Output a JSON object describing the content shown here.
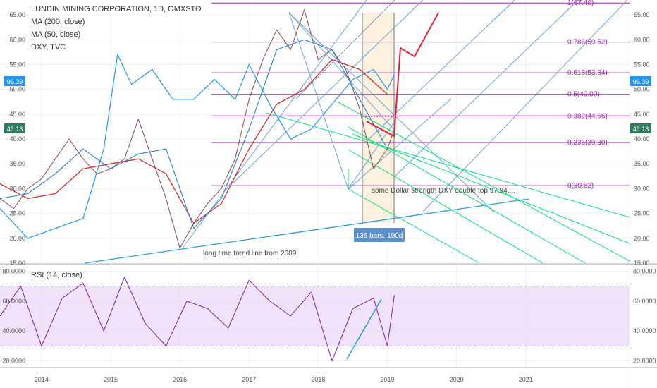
{
  "header": {
    "title": "LUNDIN MINING CORPORATION, 1D, OMXSTO",
    "indicators": [
      "MA (200, close)",
      "MA (50, close)",
      "DXY, TVC"
    ]
  },
  "rsi_label": "RSI (14, close)",
  "badges": {
    "dxy_price": "96.39",
    "stock_price": "43.18",
    "range": "136 bars, 190d"
  },
  "annotations": {
    "trend_line": "long time trend line from 2009",
    "dxy_note": "some Dollar strength DXY double top 97.94...."
  },
  "colors": {
    "price_candles_up": "#26a69a",
    "price_candles_down": "#b22833",
    "ma200": "#d32f2f",
    "ma50": "#1976d2",
    "dxy": "#2196f3",
    "fib": "#9c27b0",
    "pitchfork": "#00e676",
    "rsi": "#7b1fa2",
    "rsi_band": "#e9d5f5"
  },
  "chart_data": [
    {
      "type": "line",
      "title": "LUNDIN MINING CORPORATION, 1D, OMXSTO",
      "y_ticks": [
        "65.00",
        "60.00",
        "55.00",
        "50.00",
        "45.00",
        "40.00",
        "35.00",
        "30.00",
        "25.00",
        "20.00",
        "15.00"
      ],
      "ylim": [
        15,
        68
      ],
      "x_ticks": [
        "2014",
        "2015",
        "2016",
        "2017",
        "2018",
        "2019",
        "2020",
        "2021"
      ],
      "xlim": [
        2013.4,
        2022.5
      ],
      "fib_levels": [
        {
          "label": "1(67.40)",
          "value": 67.4
        },
        {
          "label": "0.786(59.52)",
          "value": 59.52
        },
        {
          "label": "0.618(53.34)",
          "value": 53.34
        },
        {
          "label": "0.5(49.00)",
          "value": 49.0
        },
        {
          "label": "0.382(44.66)",
          "value": 44.66
        },
        {
          "label": "0.236(39.30)",
          "value": 39.3
        },
        {
          "label": "0(30.62)",
          "value": 30.62
        }
      ],
      "series": [
        {
          "name": "OMXSTO",
          "x": [
            2013.4,
            2013.6,
            2013.8,
            2014.0,
            2014.2,
            2014.4,
            2014.6,
            2014.8,
            2015.0,
            2015.2,
            2015.4,
            2015.6,
            2015.8,
            2016.0,
            2016.2,
            2016.4,
            2016.6,
            2016.8,
            2017.0,
            2017.2,
            2017.4,
            2017.6,
            2017.8,
            2018.0,
            2018.2,
            2018.4,
            2018.6,
            2018.8,
            2019.0,
            2019.1
          ],
          "values": [
            28,
            26,
            30,
            32,
            36,
            40,
            36,
            33,
            34,
            36,
            44,
            36,
            28,
            18,
            23,
            27,
            30,
            36,
            48,
            56,
            62,
            58,
            66,
            56,
            58,
            54,
            46,
            34,
            38,
            42
          ]
        },
        {
          "name": "MA (200, close)",
          "x": [
            2013.4,
            2013.8,
            2014.2,
            2014.6,
            2015.0,
            2015.4,
            2015.8,
            2016.2,
            2016.6,
            2017.0,
            2017.4,
            2017.8,
            2018.2,
            2018.6,
            2019.0
          ],
          "values": [
            31,
            28,
            29,
            34,
            35,
            36,
            33,
            23,
            27,
            38,
            47,
            50,
            56,
            54,
            49
          ]
        },
        {
          "name": "MA (50, close)",
          "x": [
            2013.4,
            2013.8,
            2014.2,
            2014.6,
            2015.0,
            2015.4,
            2015.8,
            2016.2,
            2016.6,
            2017.0,
            2017.4,
            2017.8,
            2018.2,
            2018.6,
            2019.0
          ],
          "values": [
            28,
            29,
            33,
            38,
            34,
            37,
            38,
            22,
            28,
            42,
            58,
            60,
            58,
            48,
            38
          ]
        },
        {
          "name": "DXY, TVC",
          "x": [
            2013.4,
            2013.8,
            2014.2,
            2014.6,
            2014.9,
            2015.1,
            2015.3,
            2015.6,
            2015.9,
            2016.2,
            2016.5,
            2016.8,
            2017.0,
            2017.3,
            2017.6,
            2017.9,
            2018.2,
            2018.5,
            2018.8,
            2019.0,
            2019.1
          ],
          "values": [
            26,
            20,
            22,
            24,
            38,
            57,
            51,
            54,
            48,
            48,
            52,
            48,
            55,
            47,
            40,
            42,
            47,
            52,
            54,
            50,
            53
          ]
        }
      ]
    },
    {
      "type": "line",
      "title": "RSI (14, close)",
      "y_ticks": [
        "80.0000",
        "60.0000",
        "40.0000",
        "20.0000"
      ],
      "ylim": [
        16,
        84
      ],
      "band": [
        30,
        70
      ],
      "series": [
        {
          "name": "RSI (14, close)",
          "x": [
            2013.4,
            2013.7,
            2014.0,
            2014.3,
            2014.6,
            2014.9,
            2015.2,
            2015.5,
            2015.8,
            2016.1,
            2016.4,
            2016.7,
            2017.0,
            2017.3,
            2017.6,
            2017.9,
            2018.2,
            2018.5,
            2018.8,
            2019.0,
            2019.1
          ],
          "values": [
            50,
            70,
            30,
            62,
            72,
            40,
            76,
            45,
            30,
            60,
            55,
            42,
            74,
            60,
            50,
            66,
            20,
            55,
            62,
            30,
            64
          ]
        }
      ]
    }
  ]
}
